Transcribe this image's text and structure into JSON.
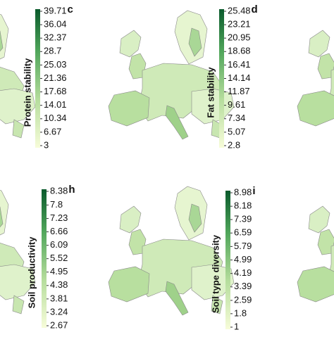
{
  "panels": [
    {
      "letter": "c",
      "label": "Protein stability",
      "ticks": [
        39.71,
        36.04,
        32.37,
        28.7,
        25.03,
        21.36,
        17.68,
        14.01,
        10.34,
        6.67,
        3
      ]
    },
    {
      "letter": "d",
      "label": "Fat stability",
      "ticks": [
        25.48,
        23.21,
        20.95,
        18.68,
        16.41,
        14.14,
        11.87,
        9.61,
        7.34,
        5.07,
        2.8
      ]
    },
    {
      "letter": "h",
      "label": "Soil productivity",
      "ticks": [
        8.38,
        7.8,
        7.23,
        6.66,
        6.09,
        5.52,
        4.95,
        4.38,
        3.81,
        3.24,
        2.67
      ]
    },
    {
      "letter": "i",
      "label": "Soil type diversity",
      "ticks": [
        8.98,
        8.18,
        7.39,
        6.59,
        5.79,
        4.99,
        4.19,
        3.39,
        2.59,
        1.8,
        1
      ]
    }
  ]
}
